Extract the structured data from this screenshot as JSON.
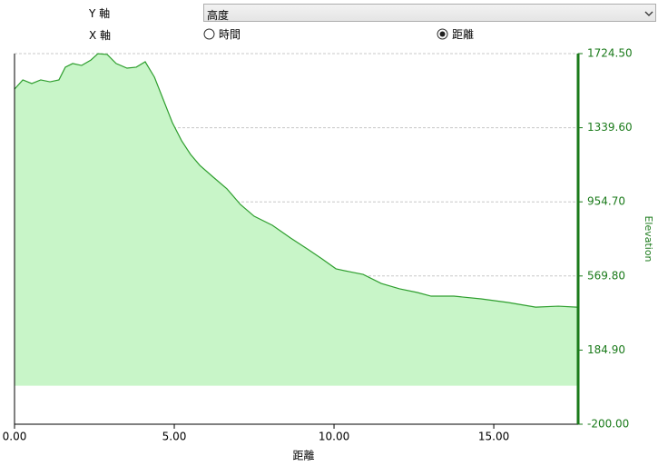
{
  "controls": {
    "y_axis_label": "Y 軸",
    "y_axis_value": "高度",
    "x_axis_label": "X 軸",
    "x_options": [
      {
        "label": "時間",
        "selected": false
      },
      {
        "label": "距離",
        "selected": true
      }
    ]
  },
  "chart_data": {
    "type": "area",
    "x_label": "距離",
    "y_label": "Elevation",
    "x": [
      0,
      0.26,
      0.54,
      0.82,
      1.11,
      1.39,
      1.59,
      1.82,
      2.1,
      2.39,
      2.61,
      2.9,
      3.18,
      3.52,
      3.81,
      4.09,
      4.38,
      4.66,
      4.94,
      5.23,
      5.51,
      5.8,
      6.22,
      6.65,
      7.07,
      7.5,
      8.07,
      8.64,
      9.2,
      9.63,
      10.06,
      10.48,
      10.91,
      11.48,
      12.05,
      12.61,
      13.04,
      13.75,
      14.6,
      15.45,
      16.31,
      17.02,
      17.6
    ],
    "series": [
      {
        "name": "Elevation",
        "color": "#2e9e2e",
        "fill": "#c8f5c8",
        "values": [
          1540,
          1588,
          1569,
          1588,
          1578,
          1588,
          1654,
          1673,
          1663,
          1691,
          1724,
          1720,
          1673,
          1649,
          1654,
          1682,
          1602,
          1484,
          1366,
          1272,
          1201,
          1144,
          1083,
          1022,
          941,
          880,
          833,
          767,
          706,
          658,
          607,
          592,
          578,
          531,
          503,
          484,
          465,
          465,
          451,
          432,
          408,
          413,
          408
        ]
      }
    ],
    "xlim": [
      0,
      17.64
    ],
    "xticks": [
      {
        "value": 0,
        "label": "0.00"
      },
      {
        "value": 5,
        "label": "5.00"
      },
      {
        "value": 10,
        "label": "10.00"
      },
      {
        "value": 15,
        "label": "15.00"
      }
    ],
    "ylim": [
      -200,
      1724.5
    ],
    "yticks": [
      {
        "value": -200,
        "label": "-200.00"
      },
      {
        "value": 184.9,
        "label": "184.90"
      },
      {
        "value": 569.8,
        "label": "569.80"
      },
      {
        "value": 954.7,
        "label": "954.70"
      },
      {
        "value": 1339.6,
        "label": "1339.60"
      },
      {
        "value": 1724.5,
        "label": "1724.50"
      }
    ],
    "y_axis_side": "right",
    "grid": true,
    "axis_color": "#1a7a1a"
  }
}
